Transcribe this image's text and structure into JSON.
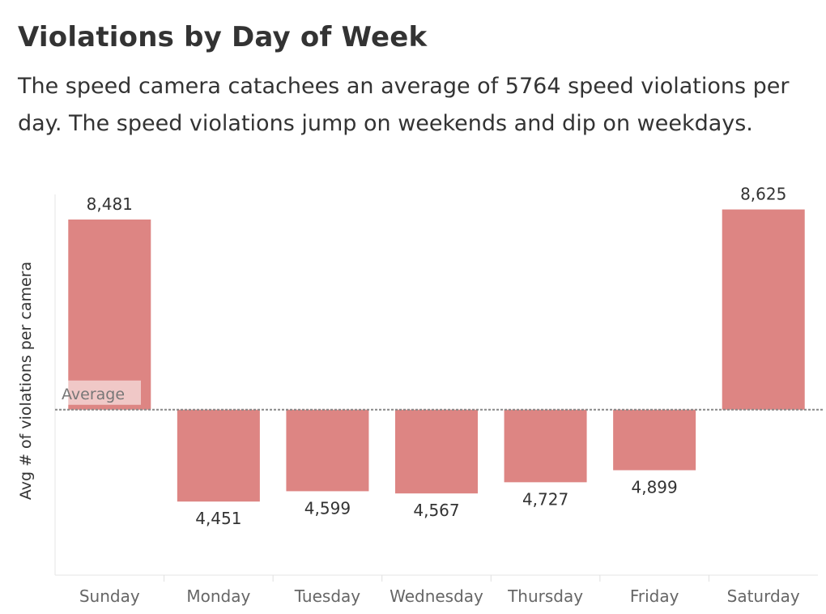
{
  "title": "Violations by Day of Week",
  "subtitle": "The speed camera catachees an average of 5764 speed violations per day. The speed violations jump on weekends and dip on weekdays.",
  "chart_data": {
    "type": "bar",
    "categories": [
      "Sunday",
      "Monday",
      "Tuesday",
      "Wednesday",
      "Thursday",
      "Friday",
      "Saturday"
    ],
    "values": [
      8481,
      4451,
      4599,
      4567,
      4727,
      4899,
      8625
    ],
    "value_labels": [
      "8,481",
      "4,451",
      "4,599",
      "4,567",
      "4,727",
      "4,899",
      "8,625"
    ],
    "baseline_value": 5764,
    "baseline_label": "Average",
    "ylabel": "Avg # of violations per camera",
    "xlabel": "",
    "ylim": [
      3400,
      8840
    ],
    "bar_color": "#dd8583",
    "grid": false
  }
}
